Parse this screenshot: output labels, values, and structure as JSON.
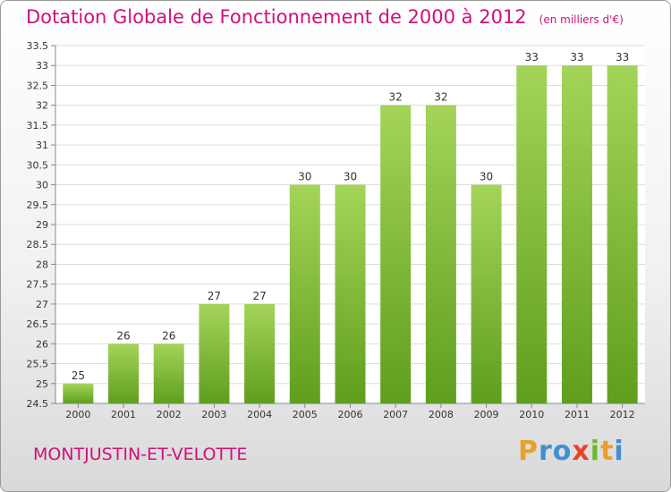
{
  "title": "Dotation Globale de Fonctionnement de 2000 à 2012",
  "unit": "(en milliers d'€)",
  "commune": "MONTJUSTIN-ET-VELOTTE",
  "logo": {
    "letters": [
      "P",
      "r",
      "o",
      "x",
      "i",
      "t",
      "i"
    ],
    "colors": [
      "#e8a02a",
      "#3f8fd2",
      "#3f8fd2",
      "#e8432a",
      "#6ab82f",
      "#e8a02a",
      "#3f8fd2"
    ]
  },
  "colors": {
    "title": "#d0107a",
    "bar_light": "#a4d45a",
    "bar_dark": "#5f9e1e",
    "grid": "#dddddd"
  },
  "chart_data": {
    "type": "bar",
    "categories": [
      "2000",
      "2001",
      "2002",
      "2003",
      "2004",
      "2005",
      "2006",
      "2007",
      "2008",
      "2009",
      "2010",
      "2011",
      "2012"
    ],
    "values": [
      25,
      26,
      26,
      27,
      27,
      30,
      30,
      32,
      32,
      30,
      33,
      33,
      33
    ],
    "ylim": [
      24.5,
      33.5
    ],
    "yticks": [
      "24.5",
      "25",
      "25.5",
      "26",
      "26.5",
      "27",
      "27.5",
      "28",
      "28.5",
      "29",
      "29.5",
      "30",
      "30.5",
      "31",
      "31.5",
      "32",
      "32.5",
      "33",
      "33.5"
    ],
    "grid": true
  }
}
